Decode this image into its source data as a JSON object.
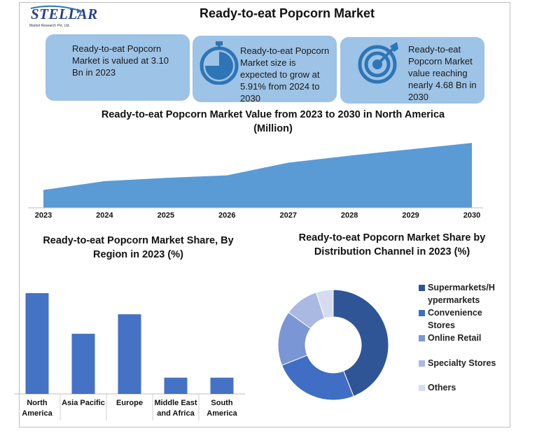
{
  "header": {
    "logo_text": "STELLAR",
    "logo_sub": "Market Research Pvt. Ltd.",
    "title": "Ready-to-eat Popcorn Market"
  },
  "cards": [
    {
      "text": "Ready-to-eat Popcorn Market is valued at 3.10 Bn in 2023",
      "icon": ""
    },
    {
      "text": "Ready-to-eat Popcorn Market size is expected to grow at 5.91% from 2024 to 2030",
      "icon": "stopwatch-icon"
    },
    {
      "text": "Ready-to-eat Popcorn Market value reaching nearly 4.68 Bn in 2030",
      "icon": "target-icon"
    }
  ],
  "colors": {
    "card_bg": "#9dc3e6",
    "area": "#5b9bd5",
    "bar": "#4472c4",
    "icon": "#2e75b6"
  },
  "chart_data": [
    {
      "type": "area",
      "title": "Ready-to-eat Popcorn Market Value from 2023 to 2030 in North America (Million)",
      "x": [
        "2023",
        "2024",
        "2025",
        "2026",
        "2027",
        "2028",
        "2029",
        "2030"
      ],
      "values": [
        28,
        42,
        47,
        51,
        71,
        82,
        92,
        102
      ],
      "ylim": [
        0,
        110
      ],
      "grid": false,
      "legend": "none"
    },
    {
      "type": "bar",
      "title": "Ready-to-eat Popcorn Market Share, By Region in 2023 (%)",
      "categories": [
        "North America",
        "Asia Pacific",
        "Europe",
        "Middle East and Africa",
        "South America"
      ],
      "values": [
        31,
        18.5,
        24.5,
        5,
        5
      ],
      "ylim": [
        0,
        34
      ],
      "grid": false,
      "legend": "none"
    },
    {
      "type": "pie",
      "subtype": "donut",
      "title": "Ready-to-eat Popcorn Market Share by Distribution Channel in 2023 (%)",
      "labels": [
        "Supermarkets/Hypermarkets",
        "Convenience Stores",
        "Online Retail",
        "Specialty Stores",
        "Others"
      ],
      "display_labels": [
        "Supermarkets/H ypermarkets",
        "Convenience Stores",
        "Online Retail",
        "Specialty Stores",
        "Others"
      ],
      "values": [
        44,
        25,
        16,
        10,
        5
      ],
      "colors": [
        "#2f5597",
        "#3f6ec4",
        "#7b96d4",
        "#aab9e2",
        "#d6dcf0"
      ],
      "legend": "right"
    }
  ]
}
